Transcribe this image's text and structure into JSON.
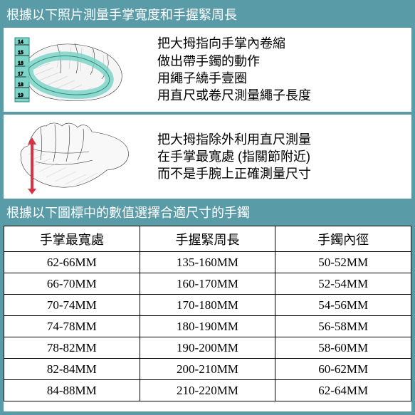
{
  "header1": "根據以下照片測量手掌寬度和手握緊周長",
  "instruction1": {
    "lines": [
      "把大拇指向手掌內卷縮",
      "做出帶手鐲的動作",
      "用繩子繞手壹圈",
      "用直尺或卷尺測量繩子長度"
    ]
  },
  "instruction2": {
    "lines": [
      "把大拇指除外利用直尺測量",
      "在手掌最寬處 (指關節附近)",
      "而不是手腕上正確測量尺寸"
    ]
  },
  "header2": "根據以下圖標中的數值選擇合適尺寸的手鐲",
  "table": {
    "columns": [
      "手掌最寬處",
      "手握緊周長",
      "手鐲內徑"
    ],
    "rows": [
      [
        "62-66MM",
        "135-160MM",
        "50-52MM"
      ],
      [
        "66-70MM",
        "160-170MM",
        "52-54MM"
      ],
      [
        "70-74MM",
        "170-180MM",
        "54-56MM"
      ],
      [
        "74-78MM",
        "180-190MM",
        "56-58MM"
      ],
      [
        "78-82MM",
        "190-200MM",
        "58-60MM"
      ],
      [
        "82-84MM",
        "200-210MM",
        "60-62MM"
      ],
      [
        "84-88MM",
        "210-220MM",
        "62-64MM"
      ]
    ]
  },
  "colors": {
    "background": "#5a9ba8",
    "panel": "#ffffff",
    "text": "#000000",
    "header_text": "#ffffff",
    "tape": "#7dd4c8",
    "ruler": "#d93344"
  }
}
